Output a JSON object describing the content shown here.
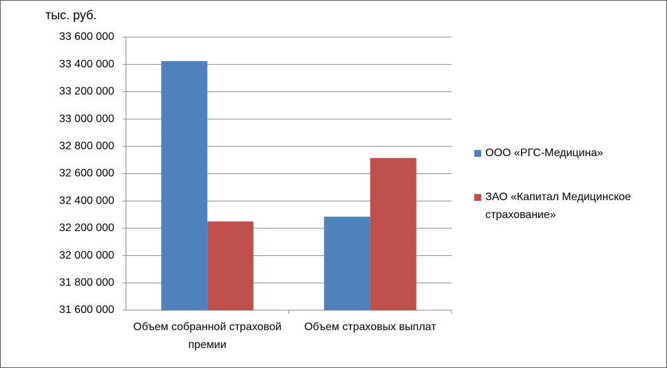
{
  "chart_data": {
    "type": "bar",
    "y_label": "тыс. руб.",
    "categories": [
      "Объем собранной страховой премии",
      "Объем страховых выплат"
    ],
    "series": [
      {
        "name": "ООО «РГС-Медицина»",
        "color": "#4f81bd",
        "values": [
          33425000,
          32285000
        ]
      },
      {
        "name": "ЗАО «Капитал Медицинское страхование»",
        "color": "#c0504d",
        "values": [
          32250000,
          32715000
        ]
      }
    ],
    "ylim": [
      31600000,
      33600000
    ],
    "yticks": [
      {
        "value": 31600000,
        "label": "31 600 000"
      },
      {
        "value": 31800000,
        "label": "31 800 000"
      },
      {
        "value": 32000000,
        "label": "32 000 000"
      },
      {
        "value": 32200000,
        "label": "32 200 000"
      },
      {
        "value": 32400000,
        "label": "32 400 000"
      },
      {
        "value": 32600000,
        "label": "32 600 000"
      },
      {
        "value": 32800000,
        "label": "32 800 000"
      },
      {
        "value": 33000000,
        "label": "33 000 000"
      },
      {
        "value": 33200000,
        "label": "33 200 000"
      },
      {
        "value": 33400000,
        "label": "33 400 000"
      },
      {
        "value": 33600000,
        "label": "33 600 000"
      }
    ],
    "grid": true,
    "legend": "right"
  }
}
